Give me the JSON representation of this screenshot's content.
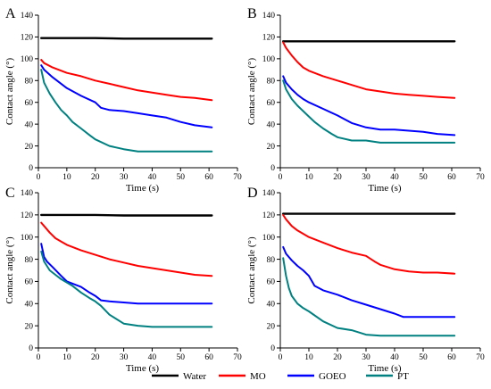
{
  "chart_data": [
    {
      "type": "line",
      "panel_label": "A",
      "xlabel": "Time (s)",
      "ylabel": "Contact angle (°)",
      "xlim": [
        0,
        70
      ],
      "ylim": [
        0,
        140
      ],
      "xticks": [
        0,
        10,
        20,
        30,
        40,
        50,
        60,
        70
      ],
      "yticks": [
        0,
        20,
        40,
        60,
        80,
        100,
        120,
        140
      ],
      "series": [
        {
          "name": "Water",
          "x": [
            1,
            10,
            20,
            30,
            40,
            50,
            61
          ],
          "y": [
            119,
            119,
            119,
            118.5,
            118.5,
            118.5,
            118.5
          ]
        },
        {
          "name": "MO",
          "x": [
            1,
            2,
            5,
            10,
            15,
            20,
            25,
            30,
            35,
            40,
            45,
            50,
            55,
            61
          ],
          "y": [
            99,
            96,
            92,
            87,
            84,
            80,
            77,
            74,
            71,
            69,
            67,
            65,
            64,
            62
          ]
        },
        {
          "name": "GOEO",
          "x": [
            1,
            2,
            5,
            10,
            15,
            20,
            22,
            25,
            30,
            35,
            40,
            45,
            50,
            55,
            61
          ],
          "y": [
            94,
            90,
            83,
            73,
            66,
            60,
            55,
            53,
            52,
            50,
            48,
            46,
            42,
            39,
            37
          ]
        },
        {
          "name": "PT",
          "x": [
            1,
            2,
            4,
            6,
            8,
            10,
            12,
            15,
            18,
            20,
            25,
            30,
            35,
            40,
            50,
            61
          ],
          "y": [
            90,
            78,
            68,
            60,
            53,
            48,
            42,
            36,
            30,
            26,
            20,
            17,
            15,
            15,
            15,
            15
          ]
        }
      ]
    },
    {
      "type": "line",
      "panel_label": "B",
      "xlabel": "Time (s)",
      "ylabel": "Contact angle (°)",
      "xlim": [
        0,
        70
      ],
      "ylim": [
        0,
        140
      ],
      "xticks": [
        0,
        10,
        20,
        30,
        40,
        50,
        60,
        70
      ],
      "yticks": [
        0,
        20,
        40,
        60,
        80,
        100,
        120,
        140
      ],
      "series": [
        {
          "name": "Water",
          "x": [
            1,
            10,
            20,
            30,
            40,
            50,
            61
          ],
          "y": [
            116,
            116,
            116,
            116,
            116,
            116,
            116
          ]
        },
        {
          "name": "MO",
          "x": [
            1,
            2,
            4,
            6,
            8,
            10,
            15,
            20,
            25,
            30,
            35,
            40,
            45,
            50,
            55,
            61
          ],
          "y": [
            115,
            110,
            103,
            97,
            92,
            89,
            84,
            80,
            76,
            72,
            70,
            68,
            67,
            66,
            65,
            64
          ]
        },
        {
          "name": "GOEO",
          "x": [
            1,
            2,
            4,
            6,
            8,
            10,
            15,
            20,
            25,
            30,
            35,
            40,
            45,
            50,
            55,
            61
          ],
          "y": [
            84,
            78,
            72,
            67,
            63,
            60,
            54,
            48,
            41,
            37,
            35,
            35,
            34,
            33,
            31,
            30
          ]
        },
        {
          "name": "PT",
          "x": [
            1,
            2,
            4,
            6,
            8,
            10,
            12,
            15,
            18,
            20,
            25,
            30,
            35,
            40,
            50,
            61
          ],
          "y": [
            80,
            72,
            63,
            57,
            52,
            47,
            42,
            36,
            31,
            28,
            25,
            25,
            23,
            23,
            23,
            23
          ]
        }
      ]
    },
    {
      "type": "line",
      "panel_label": "C",
      "xlabel": "Time (s)",
      "ylabel": "Contact angle (°)",
      "xlim": [
        0,
        70
      ],
      "ylim": [
        0,
        140
      ],
      "xticks": [
        0,
        10,
        20,
        30,
        40,
        50,
        60,
        70
      ],
      "yticks": [
        0,
        20,
        40,
        60,
        80,
        100,
        120,
        140
      ],
      "series": [
        {
          "name": "Water",
          "x": [
            1,
            10,
            20,
            30,
            40,
            50,
            61
          ],
          "y": [
            120,
            120,
            120,
            119.5,
            119.5,
            119.5,
            119.5
          ]
        },
        {
          "name": "MO",
          "x": [
            1,
            2,
            4,
            6,
            8,
            10,
            15,
            20,
            25,
            30,
            35,
            40,
            45,
            50,
            55,
            61
          ],
          "y": [
            113,
            110,
            104,
            99,
            96,
            93,
            88,
            84,
            80,
            77,
            74,
            72,
            70,
            68,
            66,
            65
          ]
        },
        {
          "name": "GOEO",
          "x": [
            1,
            2,
            3,
            5,
            8,
            10,
            15,
            18,
            20,
            22,
            25,
            30,
            35,
            40,
            50,
            61
          ],
          "y": [
            94,
            82,
            78,
            73,
            65,
            60,
            55,
            50,
            47,
            43,
            42,
            41,
            40,
            40,
            40,
            40
          ]
        },
        {
          "name": "PT",
          "x": [
            1,
            2,
            4,
            6,
            8,
            10,
            12,
            15,
            18,
            20,
            22,
            25,
            30,
            35,
            40,
            50,
            61
          ],
          "y": [
            87,
            78,
            70,
            66,
            62,
            59,
            56,
            50,
            45,
            42,
            38,
            30,
            22,
            20,
            19,
            19,
            19
          ]
        }
      ]
    },
    {
      "type": "line",
      "panel_label": "D",
      "xlabel": "Time (s)",
      "ylabel": "Contact angle (°)",
      "xlim": [
        0,
        70
      ],
      "ylim": [
        0,
        140
      ],
      "xticks": [
        0,
        10,
        20,
        30,
        40,
        50,
        60,
        70
      ],
      "yticks": [
        0,
        20,
        40,
        60,
        80,
        100,
        120,
        140
      ],
      "series": [
        {
          "name": "Water",
          "x": [
            1,
            10,
            20,
            30,
            40,
            50,
            61
          ],
          "y": [
            121,
            121,
            121,
            121,
            121,
            121,
            121
          ]
        },
        {
          "name": "MO",
          "x": [
            1,
            2,
            4,
            6,
            8,
            10,
            15,
            20,
            25,
            30,
            33,
            35,
            40,
            45,
            50,
            55,
            61
          ],
          "y": [
            120,
            116,
            110,
            106,
            103,
            100,
            95,
            90,
            86,
            83,
            78,
            75,
            71,
            69,
            68,
            68,
            67
          ]
        },
        {
          "name": "GOEO",
          "x": [
            1,
            2,
            4,
            6,
            8,
            10,
            12,
            15,
            20,
            25,
            30,
            35,
            40,
            43,
            45,
            50,
            61
          ],
          "y": [
            91,
            85,
            79,
            74,
            70,
            65,
            56,
            52,
            48,
            43,
            39,
            35,
            31,
            28,
            28,
            28,
            28
          ]
        },
        {
          "name": "PT",
          "x": [
            1,
            2,
            3,
            4,
            6,
            8,
            10,
            15,
            20,
            25,
            30,
            35,
            40,
            50,
            61
          ],
          "y": [
            81,
            65,
            54,
            47,
            40,
            36,
            33,
            24,
            18,
            16,
            12,
            11,
            11,
            11,
            11
          ]
        }
      ]
    }
  ],
  "legend": {
    "placement": "bottom",
    "items": [
      {
        "label": "Water",
        "color": "#000000"
      },
      {
        "label": "MO",
        "color": "#ff0000"
      },
      {
        "label": "GOEO",
        "color": "#0000ff"
      },
      {
        "label": "PT",
        "color": "#008080"
      }
    ]
  },
  "series_colors": {
    "Water": "#000000",
    "MO": "#ff0000",
    "GOEO": "#0000ff",
    "PT": "#008080"
  }
}
